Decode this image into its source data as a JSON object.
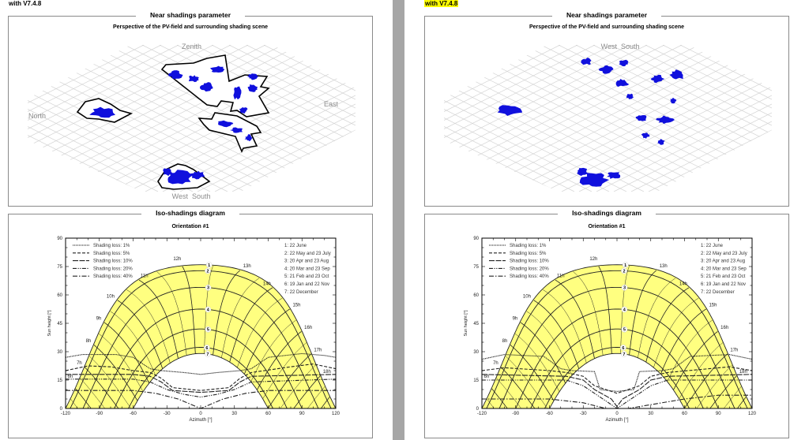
{
  "pages": [
    {
      "version": "with V7.4.8",
      "version_highlighted": false,
      "near": {
        "title": "Near shadings parameter",
        "subtitle": "Perspective of the PV-field and surrounding shading scene",
        "labels": {
          "zenith": "Zenith",
          "north": "North",
          "east": "East",
          "west": "West",
          "south": "South"
        },
        "outlined": true
      },
      "iso": {
        "title": "Iso-shadings diagram",
        "subtitle": "Orientation #1"
      }
    },
    {
      "version": "with V7.4.8",
      "version_highlighted": true,
      "near": {
        "title": "Near shadings parameter",
        "subtitle": "Perspective of the PV-field and surrounding shading scene",
        "labels": {
          "west": "West",
          "south": "South"
        },
        "outlined": false
      },
      "iso": {
        "title": "Iso-shadings diagram",
        "subtitle": "Orientation #1"
      }
    }
  ],
  "chart_data": [
    {
      "type": "line",
      "xlabel": "Azimuth [°]",
      "ylabel": "Sun height [°]",
      "xlim": [
        -120,
        120
      ],
      "ylim": [
        0,
        90
      ],
      "xticks": [
        -120,
        -90,
        -60,
        -30,
        0,
        30,
        60,
        90,
        120
      ],
      "yticks": [
        0,
        15,
        30,
        45,
        60,
        75,
        90
      ],
      "colors": {
        "band": "#ffff80",
        "lines": "#222222"
      },
      "legend_position": "top-left",
      "series": [
        {
          "name": "Shading loss: 1%",
          "style": "dotted",
          "points": [
            [
              -120,
              27
            ],
            [
              -105,
              28.5
            ],
            [
              -75,
              28.5
            ],
            [
              -60,
              27
            ],
            [
              -45,
              21
            ],
            [
              -35,
              20
            ],
            [
              -15,
              19
            ],
            [
              0,
              18
            ],
            [
              15,
              19
            ],
            [
              35,
              20
            ],
            [
              45,
              21
            ],
            [
              60,
              27
            ],
            [
              90,
              29
            ],
            [
              110,
              28
            ],
            [
              120,
              27
            ]
          ]
        },
        {
          "name": "Shading loss: 5%",
          "style": "dashed",
          "points": [
            [
              -120,
              20
            ],
            [
              -100,
              22.5
            ],
            [
              -80,
              22
            ],
            [
              -60,
              20
            ],
            [
              -45,
              19
            ],
            [
              -35,
              16
            ],
            [
              -25,
              11
            ],
            [
              0,
              9.5
            ],
            [
              25,
              11
            ],
            [
              35,
              16
            ],
            [
              45,
              19
            ],
            [
              80,
              22
            ],
            [
              100,
              23.5
            ],
            [
              120,
              21
            ]
          ]
        },
        {
          "name": "Shading loss: 10%",
          "style": "long-dash",
          "points": [
            [
              -120,
              18
            ],
            [
              -60,
              18
            ],
            [
              -45,
              17
            ],
            [
              -35,
              14
            ],
            [
              -25,
              9.5
            ],
            [
              0,
              8.5
            ],
            [
              25,
              9.5
            ],
            [
              35,
              14
            ],
            [
              45,
              17
            ],
            [
              120,
              18
            ]
          ]
        },
        {
          "name": "Shading loss: 20%",
          "style": "dash-dot-dot",
          "points": [
            [
              -120,
              15.5
            ],
            [
              -60,
              15.5
            ],
            [
              -45,
              14
            ],
            [
              -30,
              10
            ],
            [
              -15,
              7.5
            ],
            [
              0,
              6
            ],
            [
              15,
              7.5
            ],
            [
              30,
              10
            ],
            [
              45,
              14
            ],
            [
              120,
              15.5
            ]
          ]
        },
        {
          "name": "Shading loss: 40%",
          "style": "dash-dot",
          "points": [
            [
              -120,
              9.5
            ],
            [
              -60,
              9.5
            ],
            [
              -40,
              8
            ],
            [
              -20,
              5
            ],
            [
              0,
              0
            ],
            [
              20,
              5
            ],
            [
              40,
              8
            ],
            [
              60,
              9.5
            ],
            [
              120,
              9.5
            ]
          ]
        }
      ],
      "date_legend": [
        "1: 22 June",
        "2: 22 May and 23 July",
        "3: 20 Apr and 23 Aug",
        "4: 20 Mar and 23 Sep",
        "5: 21 Feb and 23 Oct",
        "6: 19 Jan and 22 Nov",
        "7: 22 December"
      ],
      "date_markers": [
        "1",
        "2",
        "3",
        "4",
        "5",
        "6",
        "7"
      ],
      "hour_labels": [
        "6h",
        "7h",
        "8h",
        "9h",
        "10h",
        "11h",
        "12h",
        "13h",
        "14h",
        "15h",
        "16h",
        "17h",
        "18h"
      ]
    },
    {
      "type": "line",
      "xlabel": "Azimuth [°]",
      "ylabel": "Sun height [°]",
      "xlim": [
        -120,
        120
      ],
      "ylim": [
        0,
        90
      ],
      "xticks": [
        -120,
        -90,
        -60,
        -30,
        0,
        30,
        60,
        90,
        120
      ],
      "yticks": [
        0,
        15,
        30,
        45,
        60,
        75,
        90
      ],
      "colors": {
        "band": "#ffff80",
        "lines": "#222222"
      },
      "legend_position": "top-left",
      "series": [
        {
          "name": "Shading loss: 1%",
          "style": "dotted",
          "points": [
            [
              -120,
              26
            ],
            [
              -100,
              28.5
            ],
            [
              -65,
              27.5
            ],
            [
              -50,
              21
            ],
            [
              -40,
              20
            ],
            [
              -20,
              19.5
            ],
            [
              -15,
              10
            ],
            [
              0,
              9
            ],
            [
              15,
              10
            ],
            [
              20,
              19.5
            ],
            [
              40,
              20
            ],
            [
              50,
              21
            ],
            [
              65,
              27.5
            ],
            [
              100,
              28.5
            ],
            [
              120,
              26
            ]
          ]
        },
        {
          "name": "Shading loss: 5%",
          "style": "dashed",
          "points": [
            [
              -120,
              20
            ],
            [
              -100,
              21.5
            ],
            [
              -60,
              20
            ],
            [
              -45,
              19
            ],
            [
              -30,
              17
            ],
            [
              -20,
              12
            ],
            [
              -5,
              9
            ],
            [
              0,
              8
            ],
            [
              5,
              9
            ],
            [
              20,
              12
            ],
            [
              30,
              17
            ],
            [
              45,
              19
            ],
            [
              100,
              22
            ],
            [
              120,
              20
            ]
          ]
        },
        {
          "name": "Shading loss: 10%",
          "style": "long-dash",
          "points": [
            [
              -120,
              18
            ],
            [
              -45,
              17
            ],
            [
              -30,
              15
            ],
            [
              -20,
              10
            ],
            [
              -5,
              5
            ],
            [
              0,
              1
            ],
            [
              5,
              5
            ],
            [
              20,
              10
            ],
            [
              30,
              15
            ],
            [
              45,
              17
            ],
            [
              120,
              18
            ]
          ]
        },
        {
          "name": "Shading loss: 20%",
          "style": "dash-dot-dot",
          "points": [
            [
              -120,
              15
            ],
            [
              -45,
              15
            ],
            [
              -30,
              12
            ],
            [
              -15,
              6
            ],
            [
              -5,
              2
            ],
            [
              0,
              0
            ],
            [
              5,
              2
            ],
            [
              15,
              6
            ],
            [
              30,
              12
            ],
            [
              45,
              15
            ],
            [
              120,
              15
            ]
          ]
        },
        {
          "name": "Shading loss: 40%",
          "style": "dash-dot",
          "points": [
            [
              -120,
              5
            ],
            [
              -60,
              5
            ],
            [
              -30,
              3
            ],
            [
              -10,
              0
            ],
            [
              10,
              0
            ],
            [
              30,
              2
            ],
            [
              60,
              5
            ],
            [
              90,
              7
            ],
            [
              120,
              7
            ]
          ]
        }
      ],
      "date_legend": [
        "1: 22 June",
        "2: 22 May and 23 July",
        "3: 20 Apr and 23 Aug",
        "4: 20 Mar and 23 Sep",
        "5: 21 Feb and 23 Oct",
        "6: 19 Jan and 22 Nov",
        "7: 22 December"
      ],
      "date_markers": [
        "1",
        "2",
        "3",
        "4",
        "5",
        "6",
        "7"
      ],
      "hour_labels": [
        "6h",
        "7h",
        "8h",
        "9h",
        "10h",
        "11h",
        "12h",
        "13h",
        "14h",
        "15h",
        "16h",
        "17h",
        "18h"
      ]
    }
  ]
}
